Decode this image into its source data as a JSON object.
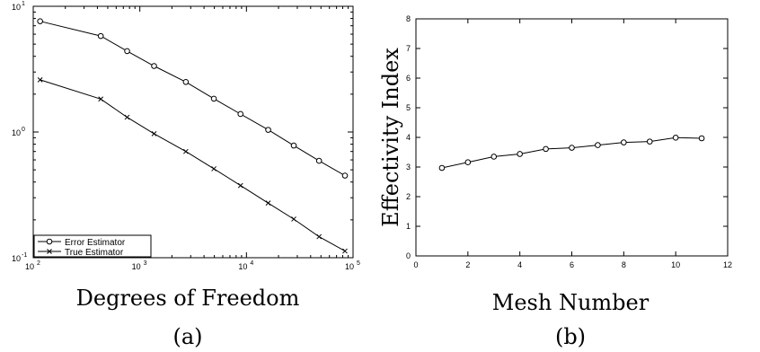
{
  "chart_data": [
    {
      "type": "line",
      "xscale": "log",
      "yscale": "log",
      "xlabel": "Degrees of Freedom",
      "ylabel": "",
      "caption": "(a)",
      "xlim": [
        100,
        100000
      ],
      "ylim": [
        0.1,
        10
      ],
      "xticks": [
        {
          "base": "10",
          "exp": "2"
        },
        {
          "base": "10",
          "exp": "3"
        },
        {
          "base": "10",
          "exp": "4"
        },
        {
          "base": "10",
          "exp": "5"
        }
      ],
      "yticks": [
        {
          "base": "10",
          "exp": "-1"
        },
        {
          "base": "10",
          "exp": "0"
        },
        {
          "base": "10",
          "exp": "1"
        }
      ],
      "legend_position": "bottom-left",
      "series": [
        {
          "name": "Error Estimator",
          "marker": "circle",
          "x": [
            116,
            430,
            760,
            1360,
            2700,
            4950,
            8800,
            16000,
            27800,
            48000,
            84000
          ],
          "y": [
            7.6,
            5.8,
            4.4,
            3.35,
            2.5,
            1.84,
            1.39,
            1.04,
            0.78,
            0.59,
            0.45
          ]
        },
        {
          "name": "True Estimator",
          "marker": "x",
          "x": [
            116,
            430,
            760,
            1360,
            2700,
            4950,
            8800,
            16000,
            27800,
            48000,
            84000
          ],
          "y": [
            2.6,
            1.83,
            1.31,
            0.97,
            0.7,
            0.51,
            0.375,
            0.272,
            0.203,
            0.147,
            0.113
          ]
        }
      ]
    },
    {
      "type": "line",
      "xlabel": "Mesh Number",
      "ylabel": "Effectivity Index",
      "caption": "(b)",
      "xlim": [
        0,
        12
      ],
      "ylim": [
        0,
        8
      ],
      "xticks": [
        "0",
        "2",
        "4",
        "6",
        "8",
        "10",
        "12"
      ],
      "yticks": [
        "0",
        "1",
        "2",
        "3",
        "4",
        "5",
        "6",
        "7",
        "8"
      ],
      "series": [
        {
          "marker": "circle",
          "x": [
            1,
            2,
            3,
            4,
            5,
            6,
            7,
            8,
            9,
            10,
            11
          ],
          "y": [
            2.97,
            3.16,
            3.35,
            3.44,
            3.61,
            3.65,
            3.74,
            3.83,
            3.86,
            3.99,
            3.97
          ]
        }
      ]
    }
  ]
}
